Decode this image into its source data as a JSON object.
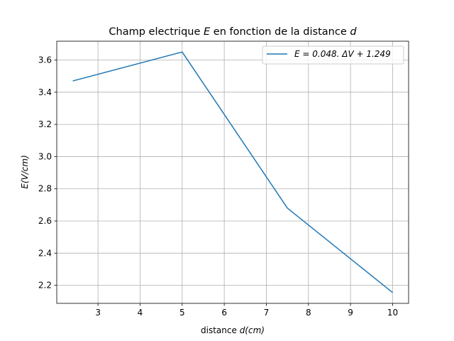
{
  "chart_data": {
    "type": "line",
    "title_prefix": "Champ electrique ",
    "title_var": "E",
    "title_mid": " en fonction de la distance ",
    "title_var2": "d",
    "xlabel_prefix": "distance ",
    "xlabel_var": "d(cm)",
    "ylabel": "E(V/cm)",
    "xlim": [
      2.02,
      10.38
    ],
    "ylim": [
      2.088,
      3.717
    ],
    "xticks": [
      3,
      4,
      5,
      6,
      7,
      8,
      9,
      10
    ],
    "xtick_labels": [
      "3",
      "4",
      "5",
      "6",
      "7",
      "8",
      "9",
      "10"
    ],
    "yticks": [
      2.2,
      2.4,
      2.6,
      2.8,
      3.0,
      3.2,
      3.4,
      3.6
    ],
    "ytick_labels": [
      "2.2",
      "2.4",
      "2.6",
      "2.8",
      "3.0",
      "3.2",
      "3.4",
      "3.6"
    ],
    "grid": true,
    "legend_position": "top-right",
    "series": [
      {
        "name": "E = 0.048. ΔV + 1.249",
        "color": "#1f77b4",
        "x": [
          2.4,
          5.0,
          7.5,
          10.0
        ],
        "y": [
          3.47,
          3.65,
          2.68,
          2.155
        ]
      }
    ]
  }
}
